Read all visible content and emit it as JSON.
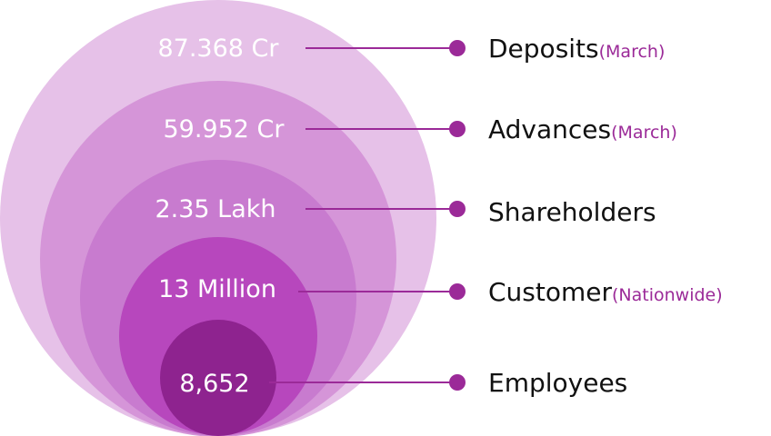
{
  "colors": {
    "ring1": "#e6c1e8",
    "ring2": "#d595d8",
    "ring3": "#c87bcf",
    "ring4": "#b747bd",
    "ring5": "#8e238f",
    "connector": "#9b2a98",
    "qualifier": "#9b2a98"
  },
  "items": [
    {
      "value": "87.368 Cr",
      "label": "Deposits",
      "qualifier": "(March)"
    },
    {
      "value": "59.952 Cr",
      "label": "Advances",
      "qualifier": "(March)"
    },
    {
      "value": "2.35 Lakh",
      "label": "Shareholders",
      "qualifier": ""
    },
    {
      "value": "13 Million",
      "label": "Customer",
      "qualifier": "(Nationwide)"
    },
    {
      "value": "8,652",
      "label": "Employees",
      "qualifier": ""
    }
  ]
}
